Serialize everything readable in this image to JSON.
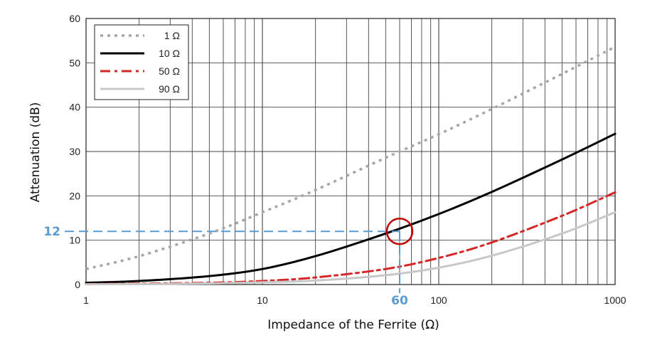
{
  "chart_data": {
    "type": "line",
    "title": "",
    "xlabel": "Impedance of the Ferrite (Ω)",
    "ylabel": "Attenuation (dB)",
    "x_scale": "log",
    "xlim": [
      1,
      1000
    ],
    "ylim": [
      0,
      60
    ],
    "x_ticks": [
      1,
      10,
      100,
      1000
    ],
    "x_tick_labels": [
      "1",
      "10",
      "100",
      "1000"
    ],
    "y_ticks": [
      0,
      10,
      20,
      30,
      40,
      50,
      60
    ],
    "y_tick_labels": [
      "0",
      "10",
      "20",
      "30",
      "40",
      "50",
      "60"
    ],
    "grid": true,
    "legend_position": "top-left",
    "series": [
      {
        "name": "1 Ω",
        "color": "#a6a6a6",
        "style": "dotted",
        "x": [
          1,
          2,
          5,
          10,
          20,
          50,
          100,
          200,
          500,
          1000
        ],
        "y": [
          3.5,
          6.4,
          11.5,
          16.3,
          21.3,
          28.6,
          33.9,
          39.6,
          47.5,
          53.6
        ]
      },
      {
        "name": "10 Ω",
        "color": "#000000",
        "style": "solid",
        "x": [
          1,
          2,
          5,
          10,
          20,
          50,
          100,
          200,
          500,
          1000
        ],
        "y": [
          0.4,
          0.8,
          1.9,
          3.5,
          6.4,
          11.5,
          15.9,
          20.9,
          28.2,
          34.0
        ]
      },
      {
        "name": "50 Ω",
        "color": "#d62728",
        "style": "dashdot",
        "x": [
          1,
          2,
          5,
          10,
          20,
          50,
          100,
          200,
          500,
          1000
        ],
        "y": [
          0.1,
          0.2,
          0.4,
          0.8,
          1.6,
          3.5,
          6.0,
          9.5,
          15.5,
          20.8
        ]
      },
      {
        "name": "90 Ω",
        "color": "#c8c8c8",
        "style": "solid",
        "x": [
          1,
          2,
          5,
          10,
          20,
          50,
          100,
          200,
          500,
          1000
        ],
        "y": [
          0.05,
          0.1,
          0.25,
          0.5,
          0.9,
          2.1,
          3.8,
          6.5,
          11.5,
          16.3
        ]
      }
    ],
    "annotations": [
      {
        "type": "marker-circle",
        "x": 60,
        "y": 12,
        "color": "#c00000"
      },
      {
        "type": "reference-lines",
        "x": 60,
        "y": 12,
        "x_label": "60",
        "y_label": "12",
        "color": "#5b9bd5"
      }
    ]
  }
}
